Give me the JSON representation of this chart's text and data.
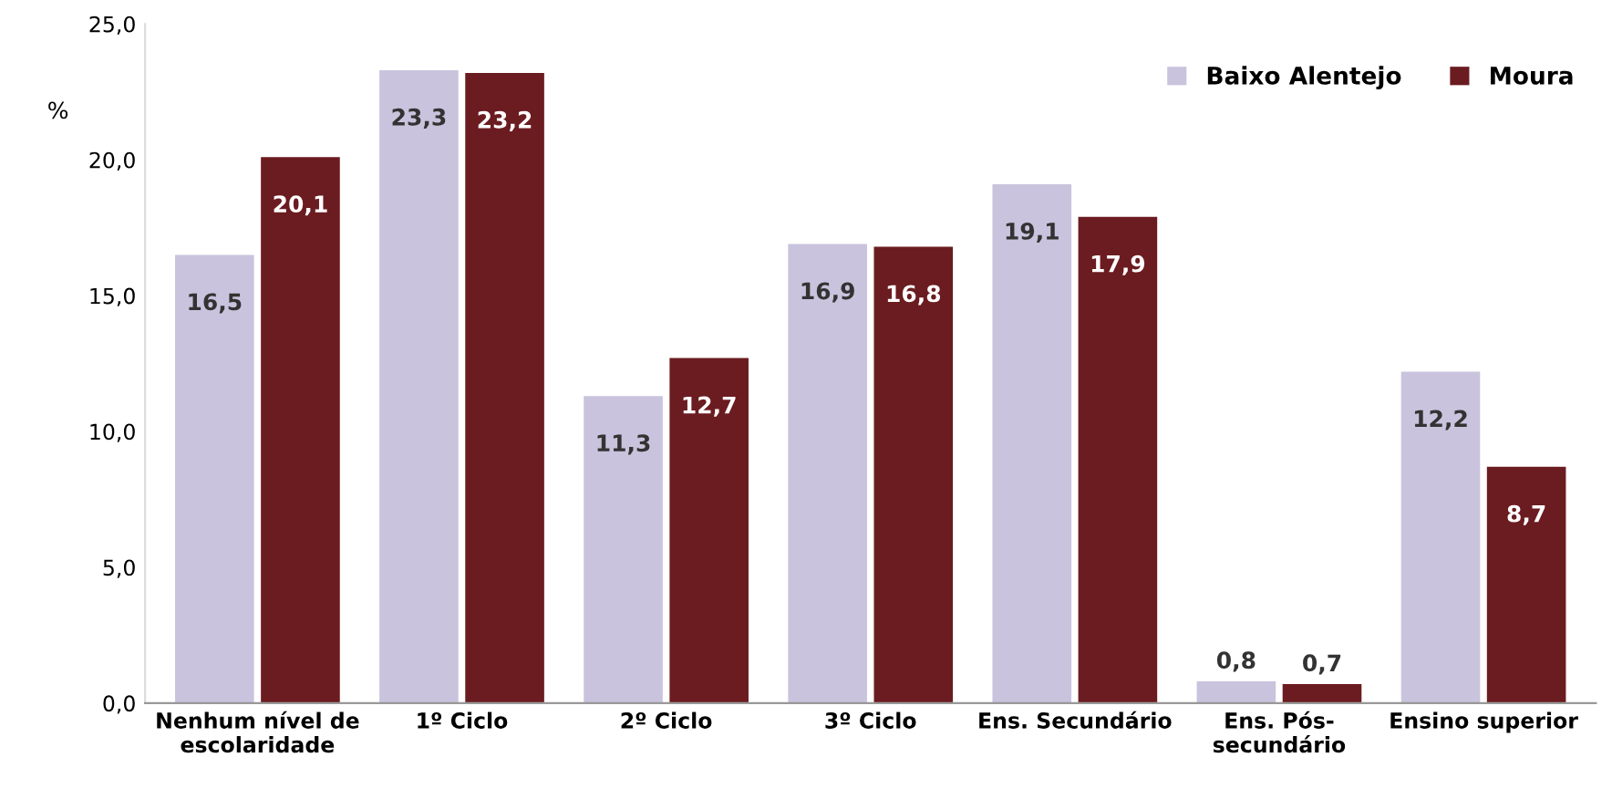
{
  "chart_data": {
    "type": "bar",
    "ylabel": "%",
    "categories": [
      "Nenhum nível de\nescolaridade",
      "1º Ciclo",
      "2º Ciclo",
      "3º Ciclo",
      "Ens. Secundário",
      "Ens. Pós-\nsecundário",
      "Ensino superior"
    ],
    "series": [
      {
        "name": "Baixo Alentejo",
        "color": "#c9c3dd",
        "values": [
          16.5,
          23.3,
          11.3,
          16.9,
          19.1,
          0.8,
          12.2
        ],
        "value_labels": [
          "16,5",
          "23,3",
          "11,3",
          "16,9",
          "19,1",
          "0,8",
          "12,2"
        ]
      },
      {
        "name": "Moura",
        "color": "#6b1c20",
        "values": [
          20.1,
          23.2,
          12.7,
          16.8,
          17.9,
          0.7,
          8.7
        ],
        "value_labels": [
          "20,1",
          "23,2",
          "12,7",
          "16,8",
          "17,9",
          "0,7",
          "8,7"
        ]
      }
    ],
    "ylim": [
      0,
      25
    ],
    "yticks": [
      {
        "value": 0,
        "label": "0,0"
      },
      {
        "value": 5,
        "label": "5,0"
      },
      {
        "value": 10,
        "label": "10,0"
      },
      {
        "value": 15,
        "label": "15,0"
      },
      {
        "value": 20,
        "label": "20,0"
      },
      {
        "value": 25,
        "label": "25,0"
      }
    ],
    "grid": false,
    "legend": "top right"
  }
}
